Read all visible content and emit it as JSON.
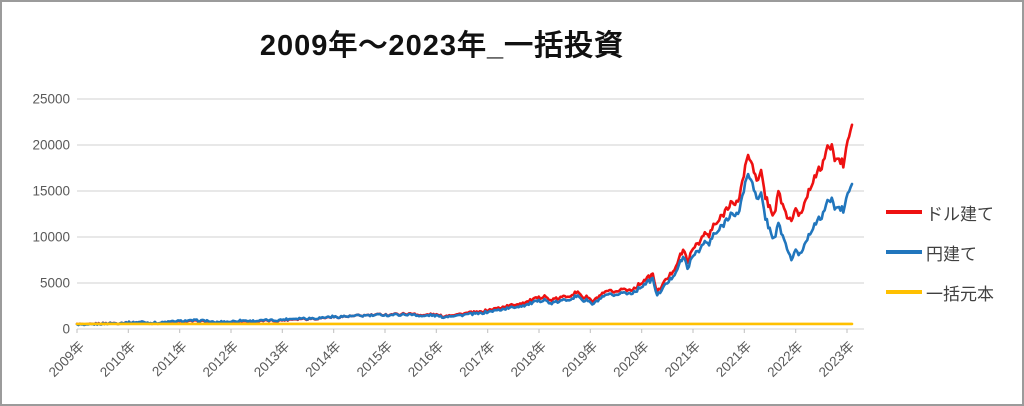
{
  "title": "2009年〜2023年_一括投資",
  "frame": {
    "border_color": "#9b9b9b",
    "background": "#ffffff"
  },
  "legend": [
    {
      "label": "ドル建て",
      "color": "#ee1111"
    },
    {
      "label": "円建て",
      "color": "#2176bd"
    },
    {
      "label": "一括元本",
      "color": "#ffc000"
    }
  ],
  "axis": {
    "y_tick_labels": [
      "0",
      "5000",
      "10000",
      "15000",
      "20000",
      "25000"
    ],
    "x_tick_labels": [
      "2009年",
      "2010年",
      "2011年",
      "2012年",
      "2013年",
      "2014年",
      "2015年",
      "2016年",
      "2017年",
      "2018年",
      "2019年",
      "2020年",
      "2021年",
      "2021年",
      "2022年",
      "2023年"
    ],
    "label_color": "#595959",
    "grid_color": "#d9d9d9",
    "tick_color": "#bfbfbf"
  },
  "chart_data": {
    "type": "line",
    "title": "2009年〜2023年_一括投資",
    "xlabel": "",
    "ylabel": "",
    "ylim": [
      0,
      25000
    ],
    "y_ticks": [
      0,
      5000,
      10000,
      15000,
      20000,
      25000
    ],
    "x_tick_labels": [
      "2009年",
      "2010年",
      "2011年",
      "2012年",
      "2013年",
      "2014年",
      "2015年",
      "2016年",
      "2017年",
      "2018年",
      "2019年",
      "2020年",
      "2021年",
      "2021年",
      "2022年",
      "2023年"
    ],
    "grid": true,
    "legend_position": "right",
    "x_start_year": 2009,
    "x_end_year": 2023,
    "points_per_year": 12,
    "series": [
      {
        "name": "ドル建て",
        "color": "#ee1111",
        "values": [
          550,
          500,
          430,
          500,
          550,
          575,
          600,
          620,
          640,
          620,
          655,
          680,
          700,
          685,
          720,
          760,
          680,
          640,
          660,
          630,
          690,
          730,
          760,
          800,
          810,
          840,
          830,
          870,
          860,
          840,
          850,
          700,
          660,
          720,
          740,
          730,
          780,
          820,
          870,
          860,
          800,
          820,
          840,
          870,
          920,
          900,
          890,
          940,
          1000,
          1030,
          1080,
          1100,
          1150,
          1090,
          1150,
          1120,
          1170,
          1220,
          1280,
          1320,
          1280,
          1350,
          1360,
          1370,
          1410,
          1460,
          1440,
          1500,
          1480,
          1520,
          1580,
          1570,
          1520,
          1620,
          1600,
          1620,
          1660,
          1620,
          1670,
          1500,
          1440,
          1570,
          1580,
          1530,
          1420,
          1380,
          1520,
          1560,
          1600,
          1640,
          1720,
          1780,
          1800,
          1820,
          1950,
          2050,
          2150,
          2250,
          2350,
          2450,
          2550,
          2650,
          2750,
          2850,
          2950,
          3150,
          3300,
          3400,
          3700,
          3100,
          3200,
          3300,
          3450,
          3550,
          3700,
          3900,
          3950,
          3400,
          3500,
          2950,
          3300,
          3700,
          3900,
          4200,
          3800,
          4200,
          4400,
          4200,
          4300,
          4500,
          4900,
          5300,
          5600,
          5900,
          3950,
          4700,
          5300,
          5900,
          6600,
          7600,
          8600,
          7400,
          8300,
          9300,
          9600,
          10400,
          10100,
          11200,
          11600,
          12300,
          13100,
          13900,
          13200,
          14500,
          16800,
          18900,
          18200,
          15800,
          16900,
          14500,
          13200,
          12400,
          14700,
          13600,
          12100,
          11900,
          12800,
          12400,
          13600,
          15200,
          16200,
          16800,
          17800,
          19200,
          19900,
          18800,
          18300,
          17900,
          20300,
          22200
        ]
      },
      {
        "name": "円建て",
        "color": "#2176bd",
        "values": [
          520,
          470,
          400,
          470,
          520,
          550,
          575,
          600,
          625,
          610,
          650,
          680,
          705,
          695,
          735,
          780,
          700,
          660,
          685,
          655,
          720,
          765,
          800,
          845,
          860,
          895,
          885,
          930,
          920,
          900,
          910,
          750,
          705,
          770,
          790,
          780,
          835,
          875,
          930,
          915,
          850,
          870,
          890,
          920,
          965,
          945,
          935,
          985,
          1050,
          1080,
          1130,
          1150,
          1190,
          1130,
          1180,
          1150,
          1200,
          1250,
          1300,
          1340,
          1290,
          1360,
          1370,
          1370,
          1410,
          1450,
          1430,
          1490,
          1460,
          1500,
          1550,
          1540,
          1480,
          1570,
          1550,
          1560,
          1600,
          1550,
          1600,
          1430,
          1370,
          1490,
          1500,
          1450,
          1340,
          1300,
          1430,
          1460,
          1490,
          1520,
          1590,
          1640,
          1660,
          1670,
          1780,
          1870,
          1950,
          2040,
          2120,
          2210,
          2290,
          2380,
          2470,
          2550,
          2640,
          2820,
          2950,
          3040,
          3300,
          2760,
          2850,
          2940,
          3080,
          3170,
          3310,
          3490,
          3540,
          3050,
          3140,
          2650,
          2970,
          3340,
          3530,
          3810,
          3450,
          3820,
          4010,
          3830,
          3930,
          4120,
          4500,
          4880,
          5150,
          5430,
          3590,
          4280,
          4820,
          5370,
          6010,
          6920,
          7830,
          6730,
          7550,
          8460,
          8740,
          9460,
          9190,
          10190,
          10560,
          11190,
          11920,
          12650,
          12010,
          13050,
          15120,
          16830,
          16200,
          13900,
          14500,
          12200,
          10800,
          9800,
          11300,
          10200,
          8700,
          7600,
          8400,
          8100,
          9100,
          10300,
          11100,
          11600,
          12300,
          13400,
          14100,
          13400,
          13100,
          12900,
          14600,
          15760
        ]
      },
      {
        "name": "一括元本",
        "color": "#ffc000",
        "constant": 550
      }
    ]
  }
}
